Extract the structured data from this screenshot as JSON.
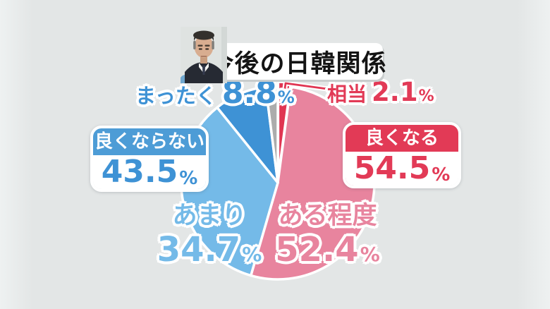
{
  "title_card": {
    "title": "今後の日韓関係"
  },
  "chart_data": {
    "type": "pie",
    "title": "今後の日韓関係",
    "direction": "clockwise",
    "start_angle": "12-oclock",
    "legend_position": "none",
    "slices": [
      {
        "label": "相当",
        "value": 2.1,
        "color": "#e03552",
        "exploded": true,
        "group": "良くなる"
      },
      {
        "label": "ある程度",
        "value": 52.4,
        "color": "#e8849e",
        "exploded": false,
        "group": "良くなる"
      },
      {
        "label": "あまり",
        "value": 34.7,
        "color": "#74bae8",
        "exploded": false,
        "group": "良くならない"
      },
      {
        "label": "まったく",
        "value": 8.8,
        "color": "#3e92d5",
        "exploded": false,
        "group": "良くならない"
      },
      {
        "label": "",
        "value": 2.0,
        "color": "#acacac",
        "exploded": false,
        "group": ""
      }
    ],
    "groups": [
      {
        "label": "良くなる",
        "value": 54.5,
        "color": "#e23a56"
      },
      {
        "label": "良くならない",
        "value": 43.5,
        "color": "#4d9cd6"
      }
    ]
  },
  "labels": {
    "mattaku": {
      "text": "まったく",
      "value": "8.8",
      "unit": "%"
    },
    "soutou": {
      "text": "相当",
      "value": "2.1",
      "unit": "%"
    },
    "amari": {
      "text": "あまり",
      "value": "34.7",
      "unit": "%"
    },
    "aruteido": {
      "text": "ある程度",
      "value": "52.4",
      "unit": "%"
    }
  },
  "callouts": {
    "negative": {
      "title": "良くならない",
      "value": "43.5",
      "unit": "%"
    },
    "positive": {
      "title": "良くなる",
      "value": "54.5",
      "unit": "%"
    }
  },
  "colors": {
    "background": "#e3e6e6",
    "pink": "#e8849e",
    "crimson": "#e23a56",
    "light_blue": "#74bae8",
    "dark_blue": "#3e92d5",
    "gray": "#acacac"
  }
}
